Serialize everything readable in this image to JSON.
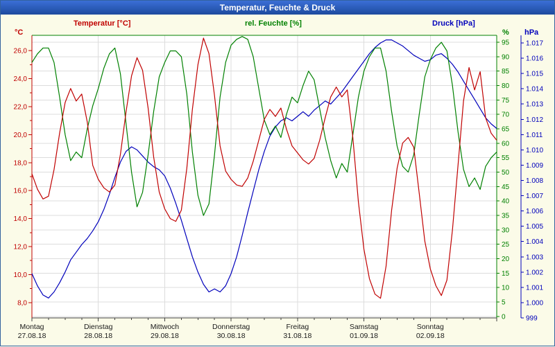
{
  "window": {
    "title": "Temperatur, Feuchte & Druck"
  },
  "chart_data": {
    "type": "line",
    "title": "Temperatur, Feuchte & Druck",
    "legend_position": "top",
    "grid": true,
    "x_axis": {
      "span_hours": 168,
      "step_hours": 2,
      "days": [
        {
          "name": "Montag",
          "date": "27.08.18"
        },
        {
          "name": "Dienstag",
          "date": "28.08.18"
        },
        {
          "name": "Mittwoch",
          "date": "29.08.18"
        },
        {
          "name": "Donnerstag",
          "date": "30.08.18"
        },
        {
          "name": "Freitag",
          "date": "31.08.18"
        },
        {
          "name": "Samstag",
          "date": "01.09.18"
        },
        {
          "name": "Sonntag",
          "date": "02.09.18"
        }
      ]
    },
    "series": [
      {
        "label": "Temperatur [°C]",
        "unit": "°C",
        "color": "#c00000",
        "axis": {
          "min": 6.9,
          "max": 27.1,
          "tick_start": 8,
          "tick_end": 26,
          "tick_step": 2,
          "minor_step": 1,
          "format": "decimal-comma",
          "side": "left"
        },
        "values": [
          17.2,
          16.1,
          15.4,
          15.6,
          17.5,
          20.1,
          22.3,
          23.3,
          22.4,
          22.9,
          20.9,
          17.8,
          16.8,
          16.2,
          15.9,
          16.4,
          18.6,
          21.6,
          24.2,
          25.5,
          24.6,
          21.9,
          18.4,
          15.9,
          14.7,
          14.0,
          13.8,
          14.6,
          17.6,
          21.8,
          25.0,
          26.9,
          25.8,
          22.8,
          19.2,
          17.4,
          16.8,
          16.4,
          16.3,
          16.9,
          18.1,
          19.6,
          21.1,
          21.8,
          21.3,
          21.9,
          20.4,
          19.2,
          18.7,
          18.2,
          17.9,
          18.3,
          19.6,
          21.2,
          22.7,
          23.4,
          22.7,
          23.2,
          19.8,
          15.2,
          11.8,
          9.7,
          8.6,
          8.3,
          10.6,
          14.6,
          17.6,
          19.4,
          19.8,
          19.1,
          15.8,
          12.4,
          10.4,
          9.2,
          8.5,
          9.6,
          13.2,
          17.8,
          22.4,
          24.8,
          23.2,
          24.5,
          21.2,
          20.1,
          19.6
        ]
      },
      {
        "label": "rel. Feuchte [%]",
        "unit": "%",
        "color": "#008000",
        "axis": {
          "min": -0.5,
          "max": 97.4,
          "tick_start": 0,
          "tick_end": 95,
          "tick_step": 5,
          "format": "integer",
          "side": "right-inner"
        },
        "values": [
          88,
          91,
          93,
          93,
          88,
          76,
          63,
          54,
          57,
          55,
          65,
          73,
          79,
          86,
          91,
          93,
          84,
          67,
          50,
          38,
          43,
          56,
          71,
          83,
          88,
          92,
          92,
          90,
          77,
          57,
          42,
          35,
          39,
          56,
          76,
          88,
          94,
          96,
          97,
          96,
          90,
          79,
          68,
          63,
          66,
          62,
          70,
          76,
          74,
          80,
          85,
          82,
          72,
          62,
          54,
          48,
          53,
          50,
          63,
          76,
          85,
          90,
          93,
          93,
          85,
          71,
          59,
          52,
          50,
          56,
          70,
          83,
          89,
          93,
          95,
          92,
          80,
          64,
          51,
          45,
          48,
          44,
          52,
          55,
          57
        ]
      },
      {
        "label": "Druck [hPa]",
        "unit": "hPa",
        "color": "#0000bb",
        "axis": {
          "min": 999,
          "max": 1017.5,
          "tick_start": 999,
          "tick_end": 1017,
          "tick_step": 1,
          "format": "thousands-dot",
          "side": "right-outer"
        },
        "values": [
          1001.9,
          1001.1,
          1000.5,
          1000.3,
          1000.7,
          1001.3,
          1002.0,
          1002.8,
          1003.3,
          1003.8,
          1004.2,
          1004.7,
          1005.3,
          1006.1,
          1007.1,
          1008.2,
          1009.2,
          1009.9,
          1010.2,
          1010.0,
          1009.6,
          1009.2,
          1008.9,
          1008.7,
          1008.3,
          1007.5,
          1006.5,
          1005.4,
          1004.2,
          1003.0,
          1002.0,
          1001.2,
          1000.7,
          1000.9,
          1000.7,
          1001.1,
          1001.9,
          1003.0,
          1004.4,
          1005.9,
          1007.3,
          1008.7,
          1009.9,
          1010.9,
          1011.5,
          1011.9,
          1012.1,
          1011.9,
          1012.2,
          1012.5,
          1012.2,
          1012.6,
          1012.9,
          1013.2,
          1013.0,
          1013.4,
          1013.8,
          1014.3,
          1014.8,
          1015.3,
          1015.8,
          1016.3,
          1016.7,
          1017.0,
          1017.2,
          1017.2,
          1017.0,
          1016.8,
          1016.5,
          1016.2,
          1016.0,
          1015.8,
          1015.9,
          1016.2,
          1016.3,
          1016.0,
          1015.6,
          1015.1,
          1014.5,
          1013.9,
          1013.3,
          1012.7,
          1012.1,
          1011.7,
          1011.4
        ]
      }
    ],
    "colors": {
      "background": "#fbfbe8",
      "plot_background": "#ffffff",
      "grid": "#dcdcdc",
      "temperature": "#c00000",
      "humidity": "#008000",
      "pressure": "#0000bb"
    }
  }
}
